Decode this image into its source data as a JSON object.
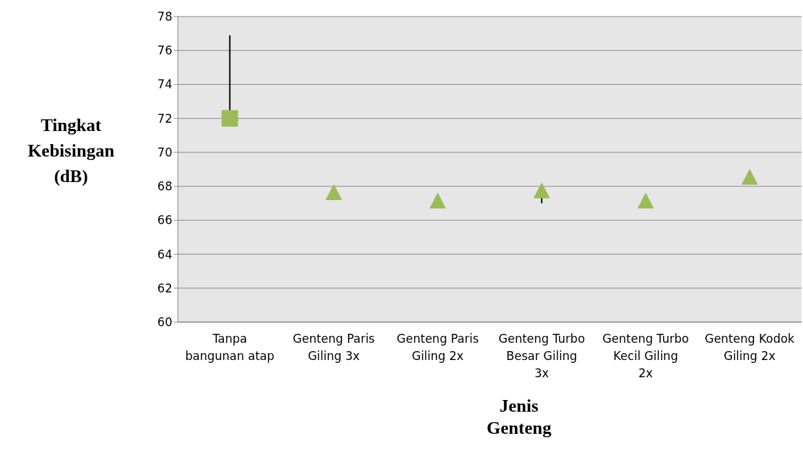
{
  "chart_data": {
    "type": "scatter",
    "xlabel": "Jenis Genteng",
    "ylabel": "Tingkat Kebisingan (dB)",
    "categories": [
      "Tanpa bangunan atap",
      "Genteng Paris Giling 3x",
      "Genteng Paris Giling 2x",
      "Genteng Turbo Besar Giling 3x",
      "Genteng Turbo Kecil Giling 2x",
      "Genteng Kodok Giling 2x"
    ],
    "series": [
      {
        "color": "#9bbb59",
        "marker": "square",
        "values": [
          72,
          null,
          null,
          null,
          null,
          null
        ],
        "errors": [
          [
            72,
            76.9
          ],
          null,
          null,
          null,
          null,
          null
        ]
      },
      {
        "color": "#9bbb59",
        "marker": "triangle",
        "values": [
          null,
          67.6,
          67.1,
          67.7,
          67.1,
          68.5
        ],
        "errors": [
          null,
          null,
          null,
          [
            67.0,
            67.7
          ],
          null,
          null
        ]
      }
    ],
    "ylim": [
      60,
      78
    ],
    "yticks": [
      60,
      62,
      64,
      66,
      68,
      70,
      72,
      74,
      76,
      78
    ],
    "grid": "y",
    "legend": false
  }
}
